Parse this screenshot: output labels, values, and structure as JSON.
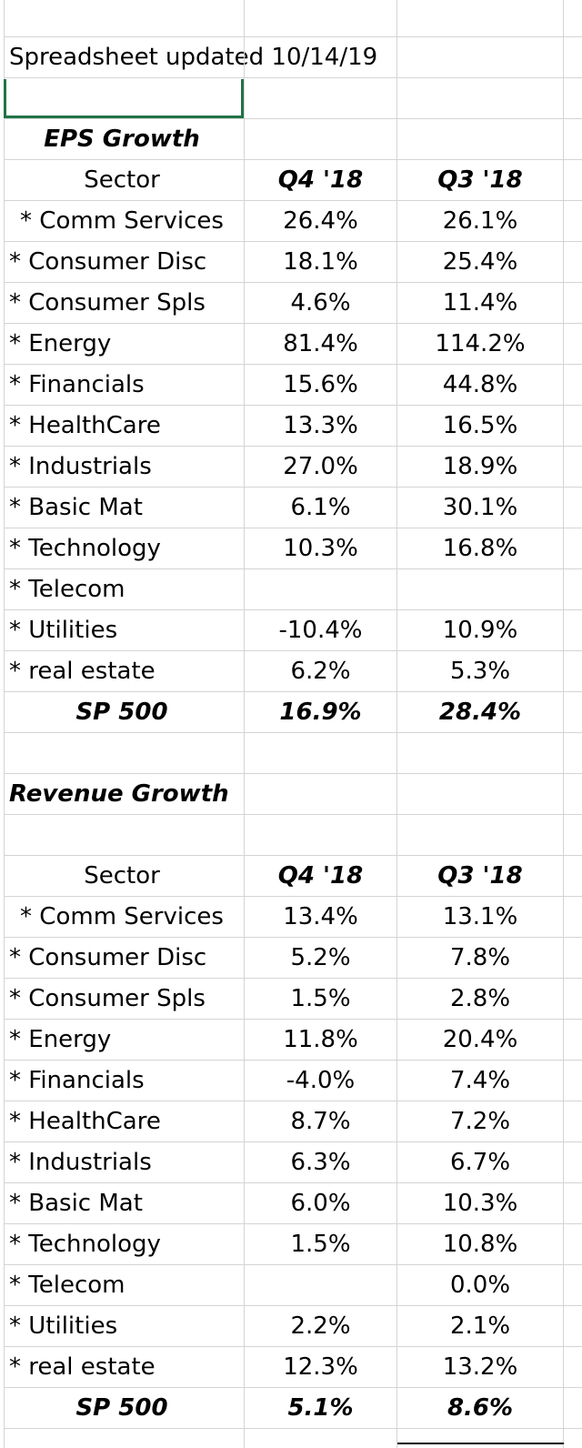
{
  "header_note": "Spreadsheet updated 10/14/19",
  "eps": {
    "title": "EPS Growth",
    "col_sector": "Sector",
    "col_q4": "Q4 '18",
    "col_q3": "Q3 '18",
    "rows": [
      {
        "sector": "* Comm Services",
        "q4": "26.4%",
        "q3": "26.1%"
      },
      {
        "sector": "* Consumer Disc",
        "q4": "18.1%",
        "q3": "25.4%"
      },
      {
        "sector": "* Consumer Spls",
        "q4": "4.6%",
        "q3": "11.4%"
      },
      {
        "sector": "* Energy",
        "q4": "81.4%",
        "q3": "114.2%"
      },
      {
        "sector": "* Financials",
        "q4": "15.6%",
        "q3": "44.8%"
      },
      {
        "sector": "* HealthCare",
        "q4": "13.3%",
        "q3": "16.5%"
      },
      {
        "sector": "* Industrials",
        "q4": "27.0%",
        "q3": "18.9%"
      },
      {
        "sector": "* Basic Mat",
        "q4": "6.1%",
        "q3": "30.1%"
      },
      {
        "sector": "* Technology",
        "q4": "10.3%",
        "q3": "16.8%"
      },
      {
        "sector": "* Telecom",
        "q4": "",
        "q3": ""
      },
      {
        "sector": "* Utilities",
        "q4": "-10.4%",
        "q3": "10.9%"
      },
      {
        "sector": "* real estate",
        "q4": "6.2%",
        "q3": "5.3%"
      }
    ],
    "total": {
      "sector": "SP 500",
      "q4": "16.9%",
      "q3": "28.4%"
    }
  },
  "revenue": {
    "title": "Revenue Growth",
    "col_sector": "Sector",
    "col_q4": "Q4 '18",
    "col_q3": "Q3 '18",
    "rows": [
      {
        "sector": "* Comm Services",
        "q4": "13.4%",
        "q3": "13.1%"
      },
      {
        "sector": "* Consumer Disc",
        "q4": "5.2%",
        "q3": "7.8%"
      },
      {
        "sector": "* Consumer Spls",
        "q4": "1.5%",
        "q3": "2.8%"
      },
      {
        "sector": "* Energy",
        "q4": "11.8%",
        "q3": "20.4%"
      },
      {
        "sector": "* Financials",
        "q4": "-4.0%",
        "q3": "7.4%"
      },
      {
        "sector": "* HealthCare",
        "q4": "8.7%",
        "q3": "7.2%"
      },
      {
        "sector": "* Industrials",
        "q4": "6.3%",
        "q3": "6.7%"
      },
      {
        "sector": "* Basic Mat",
        "q4": "6.0%",
        "q3": "10.3%"
      },
      {
        "sector": "* Technology",
        "q4": "1.5%",
        "q3": "10.8%"
      },
      {
        "sector": "* Telecom",
        "q4": "",
        "q3": "0.0%"
      },
      {
        "sector": "* Utilities",
        "q4": "2.2%",
        "q3": "2.1%"
      },
      {
        "sector": "* real estate",
        "q4": "12.3%",
        "q3": "13.2%"
      }
    ],
    "total": {
      "sector": "SP 500",
      "q4": "5.1%",
      "q3": "8.6%"
    }
  },
  "colors": {
    "gridline": "#d4d4d4",
    "selection": "#217346",
    "text": "#000000"
  }
}
